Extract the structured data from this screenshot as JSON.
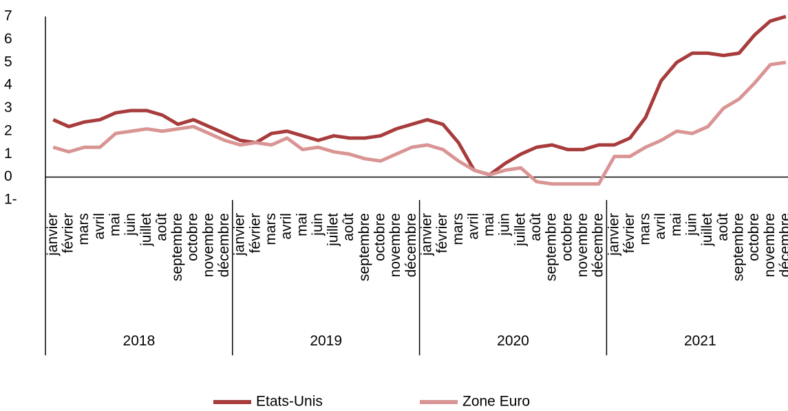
{
  "chart_data": {
    "type": "line",
    "categories": [
      "janvier",
      "février",
      "mars",
      "avril",
      "mai",
      "juin",
      "juillet",
      "août",
      "septembre",
      "octobre",
      "novembre",
      "décembre",
      "janvier",
      "février",
      "mars",
      "avril",
      "mai",
      "juin",
      "juillet",
      "août",
      "septembre",
      "octobre",
      "novembre",
      "décembre",
      "janvier",
      "février",
      "mars",
      "avril",
      "mai",
      "juin",
      "juillet",
      "août",
      "septembre",
      "octobre",
      "novembre",
      "décembre",
      "janvier",
      "février",
      "mars",
      "avril",
      "mai",
      "juin",
      "juillet",
      "août",
      "septembre",
      "octobre",
      "novembre",
      "décembre"
    ],
    "years": [
      "2018",
      "2019",
      "2020",
      "2021"
    ],
    "series": [
      {
        "name": "Etats-Unis",
        "color": "#a83c3c",
        "values": [
          2.5,
          2.2,
          2.4,
          2.5,
          2.8,
          2.9,
          2.9,
          2.7,
          2.3,
          2.5,
          2.2,
          1.9,
          1.6,
          1.5,
          1.9,
          2.0,
          1.8,
          1.6,
          1.8,
          1.7,
          1.7,
          1.8,
          2.1,
          2.3,
          2.5,
          2.3,
          1.5,
          0.3,
          0.1,
          0.6,
          1.0,
          1.3,
          1.4,
          1.2,
          1.2,
          1.4,
          1.4,
          1.7,
          2.6,
          4.2,
          5.0,
          5.4,
          5.4,
          5.3,
          5.4,
          6.2,
          6.8,
          7.0
        ]
      },
      {
        "name": "Zone Euro",
        "color": "#d99594",
        "values": [
          1.3,
          1.1,
          1.3,
          1.3,
          1.9,
          2.0,
          2.1,
          2.0,
          2.1,
          2.2,
          1.9,
          1.6,
          1.4,
          1.5,
          1.4,
          1.7,
          1.2,
          1.3,
          1.1,
          1.0,
          0.8,
          0.7,
          1.0,
          1.3,
          1.4,
          1.2,
          0.7,
          0.3,
          0.1,
          0.3,
          0.4,
          -0.2,
          -0.3,
          -0.3,
          -0.3,
          -0.3,
          0.9,
          0.9,
          1.3,
          1.6,
          2.0,
          1.9,
          2.2,
          3.0,
          3.4,
          4.1,
          4.9,
          5.0
        ]
      }
    ],
    "ylim": [
      -1,
      7
    ],
    "yticks": [
      {
        "value": -1,
        "label": "1-"
      },
      0,
      1,
      2,
      3,
      4,
      5,
      6,
      7
    ]
  }
}
